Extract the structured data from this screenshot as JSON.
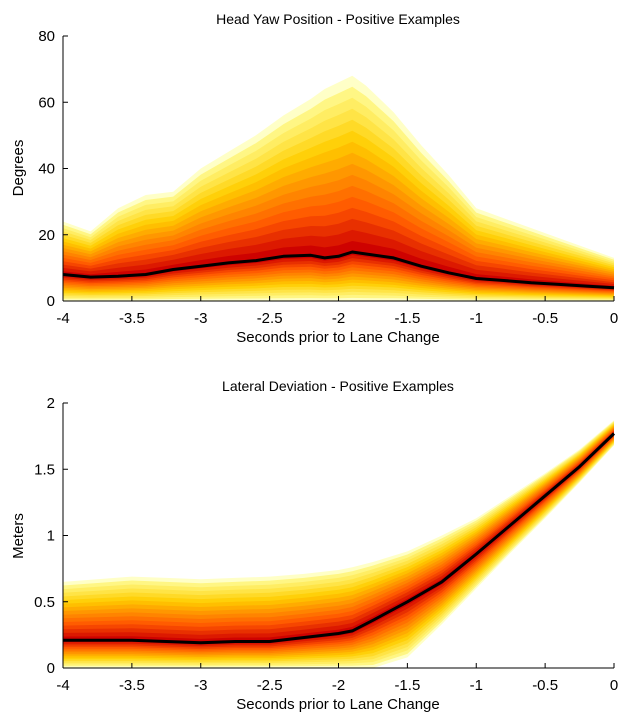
{
  "chart_data": [
    {
      "type": "area",
      "title": "Head Yaw Position - Positive Examples",
      "xlabel": "Seconds prior to Lane Change",
      "ylabel": "Degrees",
      "xlim": [
        -4,
        0
      ],
      "ylim": [
        0,
        80
      ],
      "xticks": [
        "-4",
        "-3.5",
        "-3",
        "-2.5",
        "-2",
        "-1.5",
        "-1",
        "-0.5",
        "0"
      ],
      "yticks": [
        "0",
        "20",
        "40",
        "60",
        "80"
      ],
      "grid": false,
      "colors": {
        "band_outer": "#ffff99",
        "band_mid": "#ffcc00",
        "band_core": "#ff5500",
        "band_center": "#cc0000",
        "median_line": "#000000"
      },
      "series": [
        {
          "x": [
            -4,
            -3.8,
            -3.6,
            -3.4,
            -3.2,
            -3.0,
            -2.8,
            -2.6,
            -2.4,
            -2.2,
            -2.1,
            -2.0,
            -1.9,
            -1.8,
            -1.6,
            -1.4,
            -1.2,
            -1.0,
            -0.8,
            -0.6,
            -0.4,
            -0.2,
            0
          ],
          "median": [
            8,
            7.2,
            7.5,
            8,
            9.5,
            10.5,
            11.5,
            12.2,
            13.5,
            13.8,
            13,
            13.5,
            14.8,
            14.2,
            13,
            10.5,
            8.5,
            6.8,
            6.2,
            5.5,
            5,
            4.5,
            4
          ],
          "upper": [
            24,
            21,
            28,
            32,
            33,
            40,
            45,
            50,
            56,
            61,
            64,
            66,
            68,
            65,
            57,
            47,
            38,
            28,
            25,
            22,
            19,
            16,
            13
          ],
          "lower": [
            0,
            0,
            0,
            0,
            0,
            0,
            0,
            0,
            0,
            0,
            0,
            0,
            0,
            0,
            0,
            0,
            0,
            0,
            0,
            0,
            0,
            0,
            0
          ]
        }
      ]
    },
    {
      "type": "area",
      "title": "Lateral Deviation - Positive Examples",
      "xlabel": "Seconds prior to Lane Change",
      "ylabel": "Meters",
      "xlim": [
        -4,
        0
      ],
      "ylim": [
        0,
        2
      ],
      "xticks": [
        "-4",
        "-3.5",
        "-3",
        "-2.5",
        "-2",
        "-1.5",
        "-1",
        "-0.5",
        "0"
      ],
      "yticks": [
        "0",
        "0.5",
        "1",
        "1.5",
        "2"
      ],
      "grid": false,
      "colors": {
        "band_outer": "#ffff99",
        "band_mid": "#ffcc00",
        "band_core": "#ff5500",
        "band_center": "#cc0000",
        "median_line": "#000000"
      },
      "series": [
        {
          "x": [
            -4,
            -3.75,
            -3.5,
            -3.25,
            -3.0,
            -2.75,
            -2.5,
            -2.25,
            -2.0,
            -1.9,
            -1.75,
            -1.5,
            -1.25,
            -1.0,
            -0.75,
            -0.5,
            -0.25,
            0
          ],
          "median": [
            0.21,
            0.21,
            0.21,
            0.2,
            0.19,
            0.2,
            0.2,
            0.23,
            0.26,
            0.28,
            0.36,
            0.5,
            0.65,
            0.86,
            1.08,
            1.3,
            1.52,
            1.77
          ],
          "upper": [
            0.65,
            0.67,
            0.69,
            0.68,
            0.67,
            0.68,
            0.69,
            0.71,
            0.74,
            0.76,
            0.8,
            0.88,
            1.0,
            1.13,
            1.3,
            1.47,
            1.65,
            1.87
          ],
          "lower": [
            0,
            0,
            0,
            0,
            0,
            0,
            0,
            0,
            0,
            0,
            0,
            0.08,
            0.33,
            0.6,
            0.87,
            1.13,
            1.4,
            1.68
          ]
        }
      ]
    }
  ]
}
